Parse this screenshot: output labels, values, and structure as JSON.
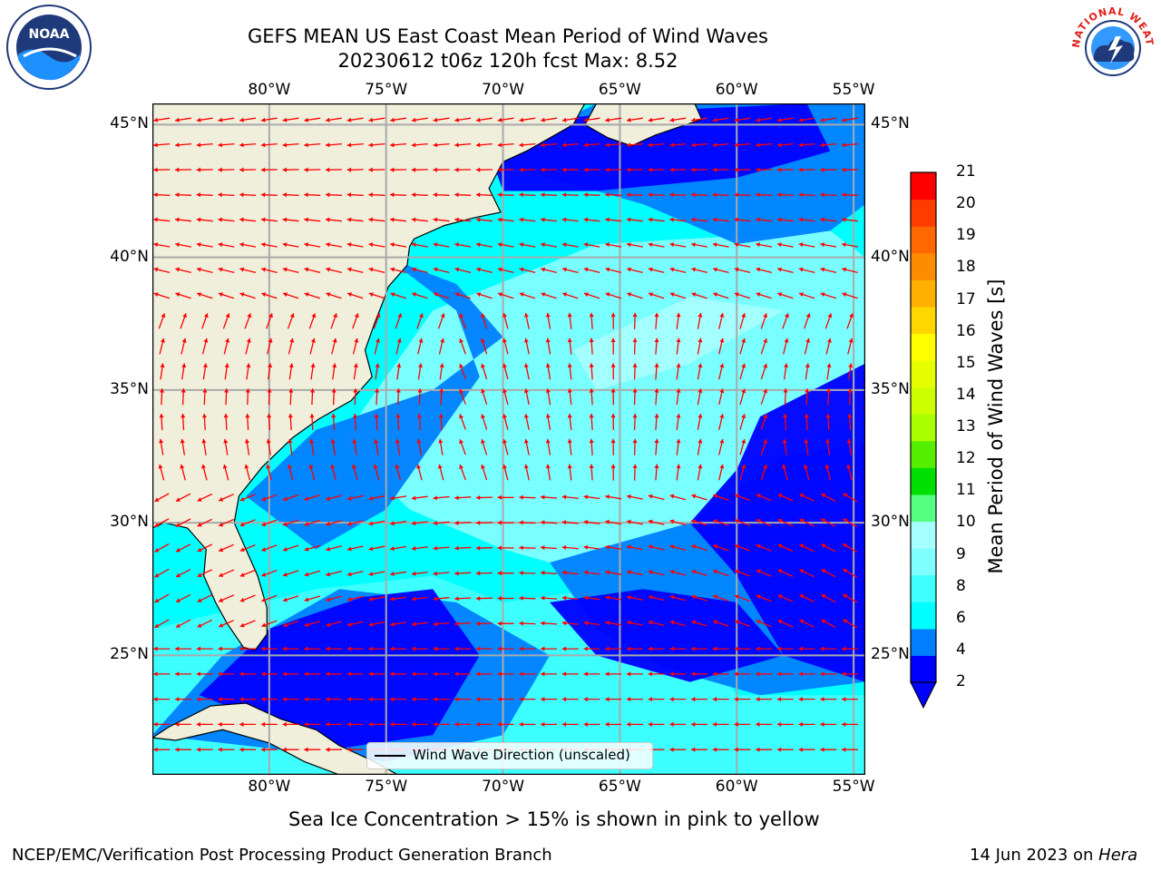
{
  "header": {
    "title_line1": "GEFS MEAN US East Coast Mean Period of Wind Waves",
    "title_line2": "20230612 t06z 120h fcst   Max: 8.52"
  },
  "logos": {
    "noaa_text": "NOAA",
    "nws_text": "NATIONAL WEATHER SERVICE"
  },
  "map": {
    "lon_labels": [
      "80°W",
      "75°W",
      "70°W",
      "65°W",
      "60°W",
      "55°W"
    ],
    "lat_labels": [
      "45°N",
      "40°N",
      "35°N",
      "30°N",
      "25°N"
    ],
    "lon_range": [
      -85,
      -54.5
    ],
    "lat_range": [
      20.5,
      45.8
    ],
    "land_color": "#efefdc",
    "grid": true,
    "arrow_color": "#ff0000",
    "legend_label": "Wind Wave Direction (unscaled)"
  },
  "colorbar": {
    "label": "Mean Period of Wind Waves [s]",
    "ticks": [
      "21",
      "20",
      "19",
      "18",
      "17",
      "16",
      "15",
      "14",
      "13",
      "12",
      "11",
      "10",
      "9",
      "8",
      "6",
      "4",
      "2"
    ],
    "extend": "min",
    "colors": [
      "#0000ff",
      "#0080ff",
      "#00ffff",
      "#40ffff",
      "#80ffff",
      "#a6ffff",
      "#55ff7f",
      "#00e000",
      "#55ee00",
      "#aaff00",
      "#ccff00",
      "#e6ff00",
      "#ffff00",
      "#ffd700",
      "#ffb000",
      "#ff8c00",
      "#ff6800",
      "#ff3c00",
      "#ff0000"
    ]
  },
  "footer": {
    "sea_ice_note": "Sea Ice Concentration > 15% is shown in pink to yellow",
    "branch": "NCEP/EMC/Verification Post Processing Product Generation Branch",
    "date": "14 Jun 2023 on ",
    "machine": "Hera"
  }
}
